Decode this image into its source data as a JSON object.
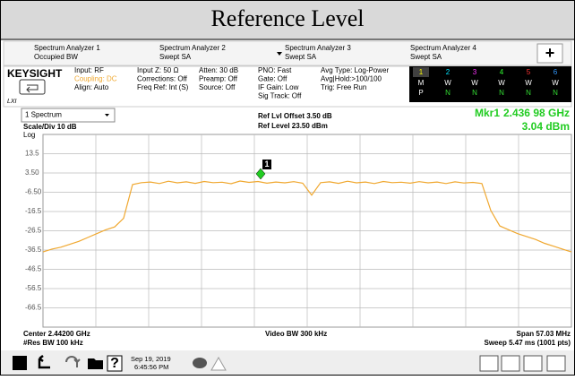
{
  "header": {
    "title": "Reference Level"
  },
  "tabs": [
    {
      "line1": "Spectrum Analyzer 1",
      "line2": "Occupied BW"
    },
    {
      "line1": "Spectrum Analyzer 2",
      "line2": "Swept SA"
    },
    {
      "line1": "Spectrum Analyzer 3",
      "line2": "Swept SA"
    },
    {
      "line1": "Spectrum Analyzer 4",
      "line2": "Swept SA"
    }
  ],
  "tab_add": "+",
  "brand": "KEYSIGHT",
  "lxi": "LXI",
  "settings": [
    [
      "Input: RF",
      "Coupling: DC",
      "Align: Auto"
    ],
    [
      "Input Z: 50 Ω",
      "Corrections: Off",
      "Freq Ref: Int (S)"
    ],
    [
      "Atten: 30 dB",
      "Preamp: Off",
      "Source: Off"
    ],
    [
      "PNO: Fast",
      "Gate: Off",
      "IF Gain: Low",
      "Sig Track: Off"
    ],
    [
      "Avg Type: Log-Power",
      "Avg|Hold:>100/100",
      "Trig: Free Run"
    ]
  ],
  "trace_table": {
    "numbers": [
      "1",
      "2",
      "3",
      "4",
      "5",
      "6"
    ],
    "rows": [
      [
        "M",
        "W",
        "W",
        "W",
        "W",
        "W"
      ],
      [
        "P",
        "N",
        "N",
        "N",
        "N",
        "N"
      ]
    ]
  },
  "chart_data": {
    "type": "line",
    "window": "1 Spectrum",
    "scale": "Scale/Div 10 dB",
    "scale_type": "Log",
    "ref_offset": "Ref Lvl Offset 3.50 dB",
    "ref_level": "Ref Level 23.50 dBm",
    "marker": {
      "name": "Mkr1",
      "frequency": "2.436 98 GHz",
      "value": 3.04,
      "value_label": "3.04 dBm",
      "label": "1",
      "color": "#22cc22"
    },
    "color": "#f0a830",
    "ylim": [
      -76.5,
      23.5
    ],
    "yticks": [
      13.5,
      {
        "value": 3.5,
        "label": "3.50"
      },
      {
        "value": -6.5,
        "label": "-6.50"
      },
      -16.5,
      -26.5,
      -36.5,
      -46.5,
      -56.5,
      -66.5
    ],
    "grid": true,
    "values": [
      -37.5,
      -36,
      -35,
      -33.5,
      -32,
      -30,
      -28,
      -26,
      -24.5,
      -20,
      -2.5,
      -1.5,
      -1.2,
      -2,
      -0.8,
      -1.6,
      -1.1,
      -1.9,
      -0.9,
      -1.5,
      -1.3,
      -2.1,
      -0.7,
      -1.4,
      -0.9,
      -1.8,
      -1.2,
      -1.6,
      -1,
      -1.8,
      -8,
      -1.5,
      -1.1,
      -1.9,
      -0.8,
      -1.6,
      -1.2,
      -2,
      -0.9,
      -1.5,
      -1.3,
      -1.8,
      -1,
      -1.6,
      -1.2,
      -2,
      -1.1,
      -1.7,
      -1.4,
      -2,
      -16,
      -24,
      -26,
      -28,
      -29.5,
      -31,
      -33,
      -34.5,
      -36,
      -37.5
    ],
    "footer": {
      "center": "Center 2.44200 GHz",
      "res_bw": "#Res BW 100 kHz",
      "video_bw": "Video BW 300 kHz",
      "span": "Span 57.03 MHz",
      "sweep": "Sweep 5.47 ms (1001 pts)"
    }
  },
  "taskbar": {
    "help": "?",
    "date": "Sep 19, 2019",
    "time": "6:45:56 PM"
  }
}
